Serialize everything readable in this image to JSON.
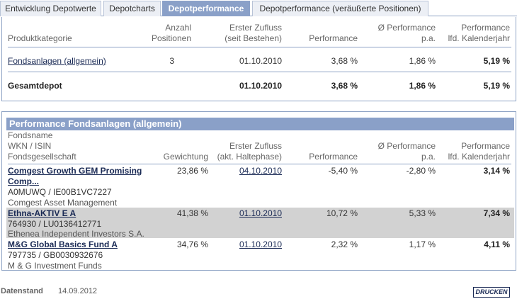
{
  "tabs": [
    {
      "label": "Entwicklung Depotwerte"
    },
    {
      "label": "Depotcharts"
    },
    {
      "label": "Depotperformance"
    },
    {
      "label": "Depotperformance (veräußerte Positionen)"
    }
  ],
  "summary": {
    "headers": {
      "category": "Produktkategorie",
      "positions_1": "Anzahl",
      "positions_2": "Positionen",
      "inflow_1": "Erster Zufluss",
      "inflow_2": "(seit Bestehen)",
      "performance": "Performance",
      "avg_1": "Ø Performance",
      "avg_2": "p.a.",
      "ytd_1": "Performance",
      "ytd_2": "lfd. Kalenderjahr"
    },
    "row": {
      "category": "Fondsanlagen (allgemein)",
      "positions": "3",
      "inflow": "01.10.2010",
      "performance": "3,68 %",
      "avg": "1,86 %",
      "ytd": "5,19 %"
    },
    "total": {
      "label": "Gesamtdepot",
      "inflow": "01.10.2010",
      "performance": "3,68 %",
      "avg": "1,86 %",
      "ytd": "5,19 %"
    }
  },
  "detail": {
    "title": "Performance Fondsanlagen (allgemein)",
    "headers": {
      "name_1": "Fondsname",
      "name_2": "WKN / ISIN",
      "name_3": "Fondsgesellschaft",
      "weight": "Gewichtung",
      "inflow_1": "Erster Zufluss",
      "inflow_2": "(akt. Haltephase)",
      "performance": "Performance",
      "avg_1": "Ø Performance",
      "avg_2": "p.a.",
      "ytd_1": "Performance",
      "ytd_2": "lfd. Kalenderjahr"
    },
    "funds": [
      {
        "name_1": "Comgest Growth GEM Promising",
        "name_2": "Comp...",
        "ids": "A0MUWQ / IE00B1VC7227",
        "company": "Comgest Asset Management",
        "weight": "23,86 %",
        "inflow": "04.10.2010",
        "performance": "-5,40 %",
        "avg": "-2,80 %",
        "ytd": "3,14 %"
      },
      {
        "name_1": "Ethna-AKTIV E A",
        "ids": "764930 / LU0136412771",
        "company": "Ethenea Independent Investors S.A.",
        "weight": "41,38 %",
        "inflow": "01.10.2010",
        "performance": "10,72 %",
        "avg": "5,33 %",
        "ytd": "7,34 %"
      },
      {
        "name_1": "M&G Global Basics Fund A",
        "ids": "797735 / GB0030932676",
        "company": "M & G Investment Funds",
        "weight": "34,76 %",
        "inflow": "01.10.2010",
        "performance": "2,32 %",
        "avg": "1,17 %",
        "ytd": "4,11 %"
      }
    ]
  },
  "footer": {
    "label": "Datenstand",
    "date": "14.09.2012",
    "print_label": "DRUCKEN"
  }
}
